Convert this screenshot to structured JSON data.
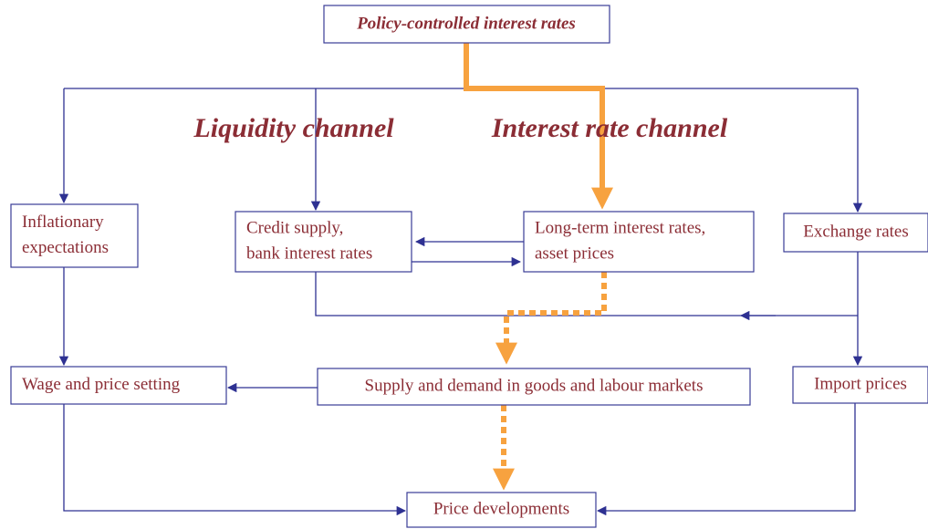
{
  "title": "Policy-controlled interest rates",
  "channels": [
    "Liquidity channel",
    "Interest rate channel"
  ],
  "nodes": [
    {
      "lines": [
        "Inflationary",
        "expectations"
      ]
    },
    {
      "lines": [
        "Credit supply,",
        "bank interest rates"
      ]
    },
    {
      "lines": [
        "Long-term interest rates,",
        "asset prices"
      ]
    },
    {
      "lines": [
        "Exchange rates"
      ]
    },
    {
      "lines": [
        "Wage and price setting"
      ]
    },
    {
      "lines": [
        "Supply and demand in goods and labour markets"
      ]
    },
    {
      "lines": [
        "Import prices"
      ]
    },
    {
      "lines": [
        "Price developments"
      ]
    }
  ]
}
